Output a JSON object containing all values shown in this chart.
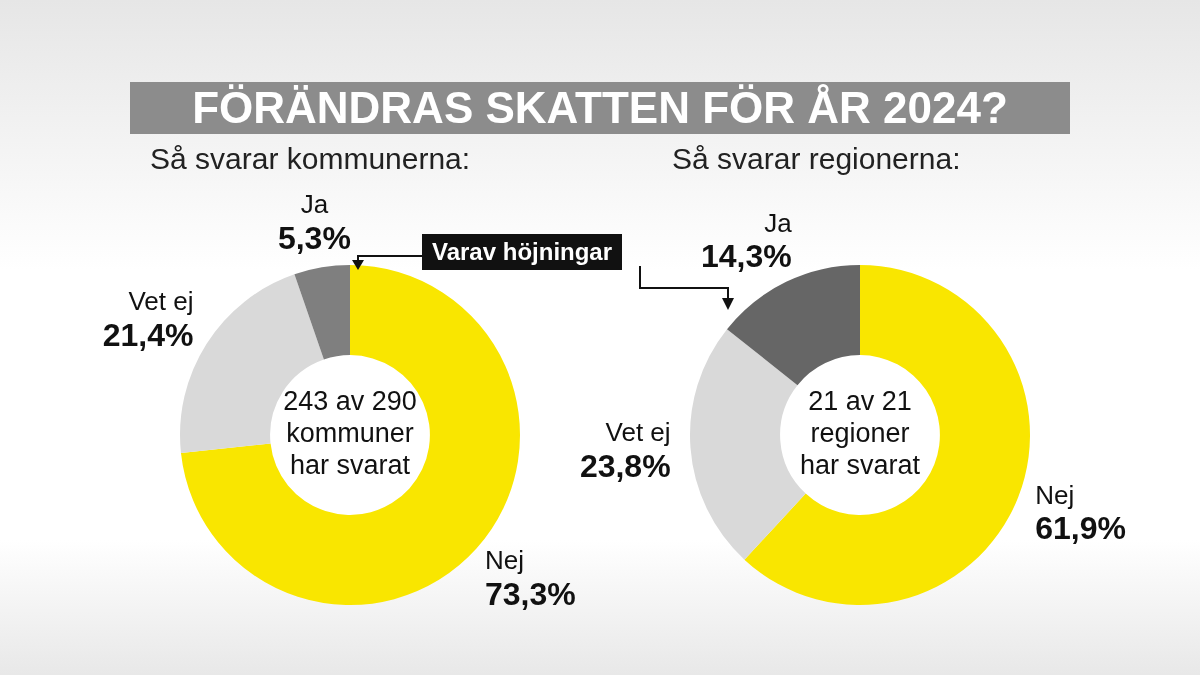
{
  "chart_data": [
    {
      "type": "donut",
      "title": "FÖRÄNDRAS SKATTEN FÖR ÅR 2024?",
      "subtitle": "Så svarar kommunerna:",
      "categories": [
        "Nej",
        "Vet ej",
        "Ja"
      ],
      "values": [
        73.3,
        21.4,
        5.3
      ],
      "value_labels": [
        "73,3%",
        "21,4%",
        "5,3%"
      ],
      "colors": [
        "#f9e600",
        "#d9d9d9",
        "#7f7f7f"
      ],
      "annotations": [
        "243 av 290\nkommuner\nhar svarat",
        "Varav höjningar"
      ]
    },
    {
      "type": "donut",
      "subtitle": "Så svarar regionerna:",
      "categories": [
        "Nej",
        "Vet ej",
        "Ja"
      ],
      "values": [
        61.9,
        23.8,
        14.3
      ],
      "value_labels": [
        "61,9%",
        "23,8%",
        "14,3%"
      ],
      "colors": [
        "#f9e600",
        "#d9d9d9",
        "#666666"
      ],
      "annotations": [
        "21 av 21\nregioner\nhar svarat"
      ]
    }
  ]
}
